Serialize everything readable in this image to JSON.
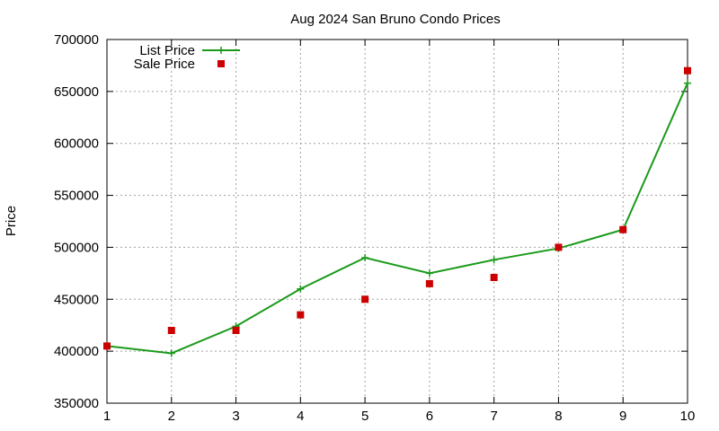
{
  "chart_data": {
    "type": "line",
    "title": "Aug 2024 San Bruno Condo Prices",
    "xlabel": "",
    "ylabel": "Price",
    "x": [
      1,
      2,
      3,
      4,
      5,
      6,
      7,
      8,
      9,
      10
    ],
    "xlim": [
      1,
      10
    ],
    "ylim": [
      350000,
      700000
    ],
    "xticks": [
      "1",
      "2",
      "3",
      "4",
      "5",
      "6",
      "7",
      "8",
      "9",
      "10"
    ],
    "yticks": [
      "350000",
      "400000",
      "450000",
      "500000",
      "550000",
      "600000",
      "650000",
      "700000"
    ],
    "grid": true,
    "legend_position": "top-left",
    "series": [
      {
        "name": "List Price",
        "style": "line-with-plus-markers",
        "color": "#1a9a1a",
        "values": [
          405000,
          398000,
          424000,
          460000,
          490000,
          475000,
          488000,
          499000,
          517000,
          658000
        ]
      },
      {
        "name": "Sale Price",
        "style": "square-markers",
        "color": "#cc0000",
        "values": [
          405000,
          420000,
          420000,
          435000,
          450000,
          465000,
          471000,
          500000,
          517000,
          670000
        ]
      }
    ]
  }
}
